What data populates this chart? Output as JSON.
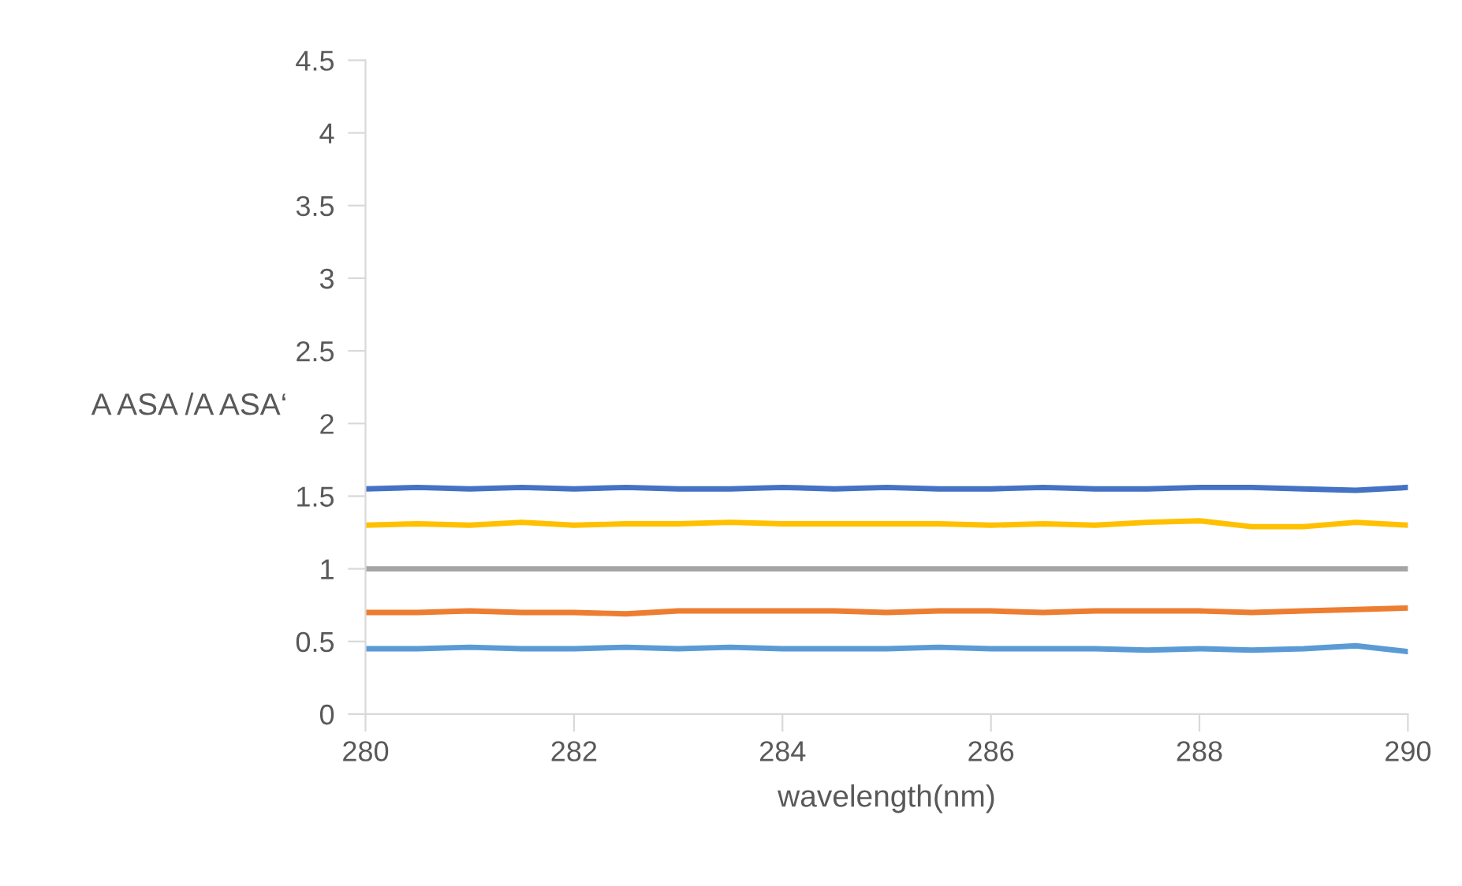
{
  "chart_data": {
    "type": "line",
    "xlabel": "wavelength(nm)",
    "ylabel": "A ASA /A ASA‘",
    "x": [
      280,
      280.5,
      281,
      281.5,
      282,
      282.5,
      283,
      283.5,
      284,
      284.5,
      285,
      285.5,
      286,
      286.5,
      287,
      287.5,
      288,
      288.5,
      289,
      289.5,
      290
    ],
    "series": [
      {
        "color": "#4472c4",
        "values": [
          1.55,
          1.56,
          1.55,
          1.56,
          1.55,
          1.56,
          1.55,
          1.55,
          1.56,
          1.55,
          1.56,
          1.55,
          1.55,
          1.56,
          1.55,
          1.55,
          1.56,
          1.56,
          1.55,
          1.54,
          1.56
        ]
      },
      {
        "color": "#ffc000",
        "values": [
          1.3,
          1.31,
          1.3,
          1.32,
          1.3,
          1.31,
          1.31,
          1.32,
          1.31,
          1.31,
          1.31,
          1.31,
          1.3,
          1.31,
          1.3,
          1.32,
          1.33,
          1.29,
          1.29,
          1.32,
          1.3
        ]
      },
      {
        "color": "#a5a5a5",
        "values": [
          1,
          1,
          1,
          1,
          1,
          1,
          1,
          1,
          1,
          1,
          1,
          1,
          1,
          1,
          1,
          1,
          1,
          1,
          1,
          1,
          1
        ]
      },
      {
        "color": "#ed7d31",
        "values": [
          0.7,
          0.7,
          0.71,
          0.7,
          0.7,
          0.69,
          0.71,
          0.71,
          0.71,
          0.71,
          0.7,
          0.71,
          0.71,
          0.7,
          0.71,
          0.71,
          0.71,
          0.7,
          0.71,
          0.72,
          0.73
        ]
      },
      {
        "color": "#5b9bd5",
        "values": [
          0.45,
          0.45,
          0.46,
          0.45,
          0.45,
          0.46,
          0.45,
          0.46,
          0.45,
          0.45,
          0.45,
          0.46,
          0.45,
          0.45,
          0.45,
          0.44,
          0.45,
          0.44,
          0.45,
          0.47,
          0.43
        ]
      }
    ],
    "xlim": [
      280,
      290
    ],
    "xticks": [
      280,
      282,
      284,
      286,
      288,
      290
    ],
    "ylim": [
      0,
      4.5
    ],
    "yticks": [
      0,
      0.5,
      1,
      1.5,
      2,
      2.5,
      3,
      3.5,
      4,
      4.5
    ],
    "grid": false,
    "legend": false,
    "marker": "none",
    "line_style": "solid"
  }
}
